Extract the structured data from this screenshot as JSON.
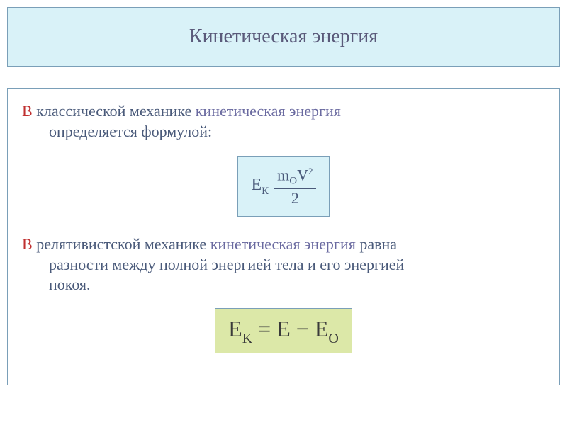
{
  "title": {
    "text": "Кинетическая энергия",
    "background_color": "#d9f2f8",
    "border_color": "#7a9fb8",
    "text_color": "#5a5a7a",
    "font_size": 28
  },
  "content_box": {
    "border_color": "#7a9fb8",
    "background_color": "#ffffff"
  },
  "paragraph1": {
    "leading": "В ",
    "rest1": "классической механике ",
    "keyword": "кинетическая энергия",
    "rest2": "определяется формулой:",
    "leading_color": "#c03030",
    "keyword_color": "#6a6aa0",
    "rest_color": "#4a5a7a",
    "font_size": 22
  },
  "formula1": {
    "ek_base": "E",
    "ek_sub": "К",
    "numerator_m": "m",
    "numerator_m_sub": "O",
    "numerator_v": "V",
    "numerator_v_sup": "2",
    "denominator": "2",
    "background_color": "#d9f2f8",
    "border_color": "#7a9fb8",
    "text_color": "#4a5a7a",
    "font_size": 24
  },
  "paragraph2": {
    "leading": "В ",
    "rest1": "релятивистской механике ",
    "keyword": "кинетическая энергия",
    "rest2a": " равна",
    "rest2b": "разности между полной энергией тела и его энергией",
    "rest2c": "покоя.",
    "leading_color": "#c03030",
    "keyword_color": "#6a6aa0",
    "rest_color": "#4a5a7a",
    "font_size": 22
  },
  "formula2": {
    "lhs_base": "E",
    "lhs_sub": "K",
    "eq": " = ",
    "rhs1": "E",
    "minus": " − ",
    "rhs2_base": "E",
    "rhs2_sub": "O",
    "background_color": "#dce8a8",
    "border_color": "#7a9fb8",
    "text_color": "#3a3a3a",
    "font_size": 32
  }
}
